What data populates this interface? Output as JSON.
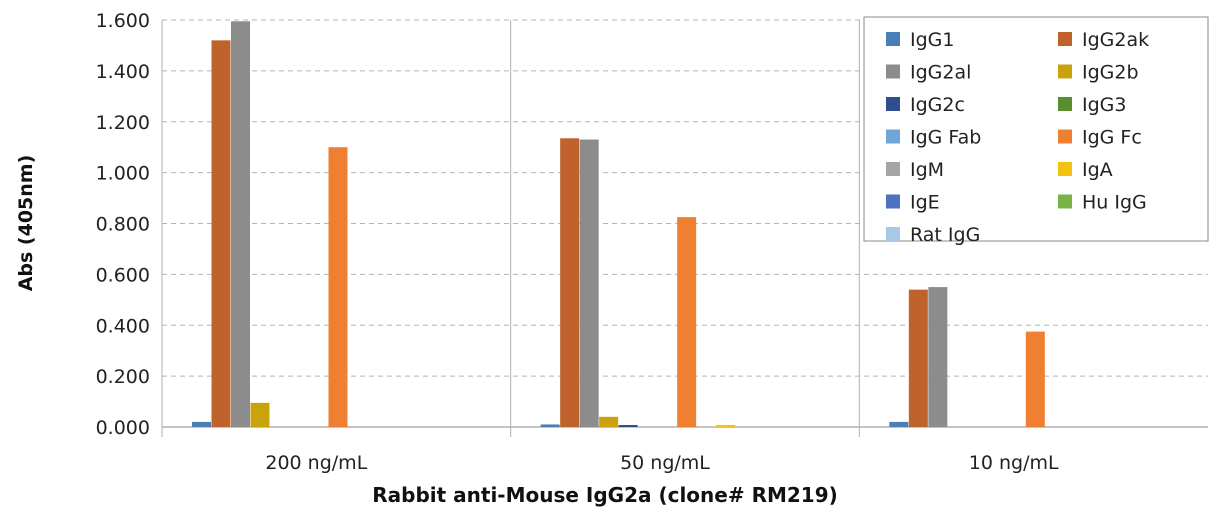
{
  "chart_data": {
    "type": "bar",
    "xlabel": "Rabbit anti-Mouse  IgG2a (clone# RM219)",
    "ylabel": "Abs (405nm)",
    "ylim": [
      0,
      1.6
    ],
    "yticks": [
      "0.000",
      "0.200",
      "0.400",
      "0.600",
      "0.800",
      "1.000",
      "1.200",
      "1.400",
      "1.600"
    ],
    "grid": true,
    "legend_position": "top-right",
    "categories": [
      "200 ng/mL",
      "50 ng/mL",
      "10 ng/mL"
    ],
    "series": [
      {
        "name": "IgG1",
        "color": "#4a7eb5",
        "values": [
          0.02,
          0.01,
          0.02
        ]
      },
      {
        "name": "IgG2ak",
        "color": "#c0622c",
        "values": [
          1.52,
          1.135,
          0.54
        ]
      },
      {
        "name": "IgG2al",
        "color": "#8c8c8c",
        "values": [
          1.595,
          1.13,
          0.55
        ]
      },
      {
        "name": "IgG2b",
        "color": "#c9a20c",
        "values": [
          0.095,
          0.04,
          0.0
        ]
      },
      {
        "name": "IgG2c",
        "color": "#2f4d8f",
        "values": [
          0.0,
          0.005,
          0.0
        ]
      },
      {
        "name": "IgG3",
        "color": "#5a8f2f",
        "values": [
          0.0,
          0.0,
          0.0
        ]
      },
      {
        "name": "IgG Fab",
        "color": "#6fa5d8",
        "values": [
          0.0,
          0.0,
          0.0
        ]
      },
      {
        "name": "IgG Fc",
        "color": "#ef8032",
        "values": [
          1.1,
          0.825,
          0.375
        ]
      },
      {
        "name": "IgM",
        "color": "#a5a5a5",
        "values": [
          0.0,
          0.0,
          0.0
        ]
      },
      {
        "name": "IgA",
        "color": "#f4c30f",
        "values": [
          0.0,
          0.008,
          0.0
        ]
      },
      {
        "name": "IgE",
        "color": "#4e72c1",
        "values": [
          0.0,
          0.0,
          0.0
        ]
      },
      {
        "name": "Hu IgG",
        "color": "#77b347",
        "values": [
          0.0,
          0.0,
          0.0
        ]
      },
      {
        "name": "Rat IgG",
        "color": "#a9c8e8",
        "values": [
          0.0,
          0.0,
          0.0
        ]
      }
    ]
  }
}
